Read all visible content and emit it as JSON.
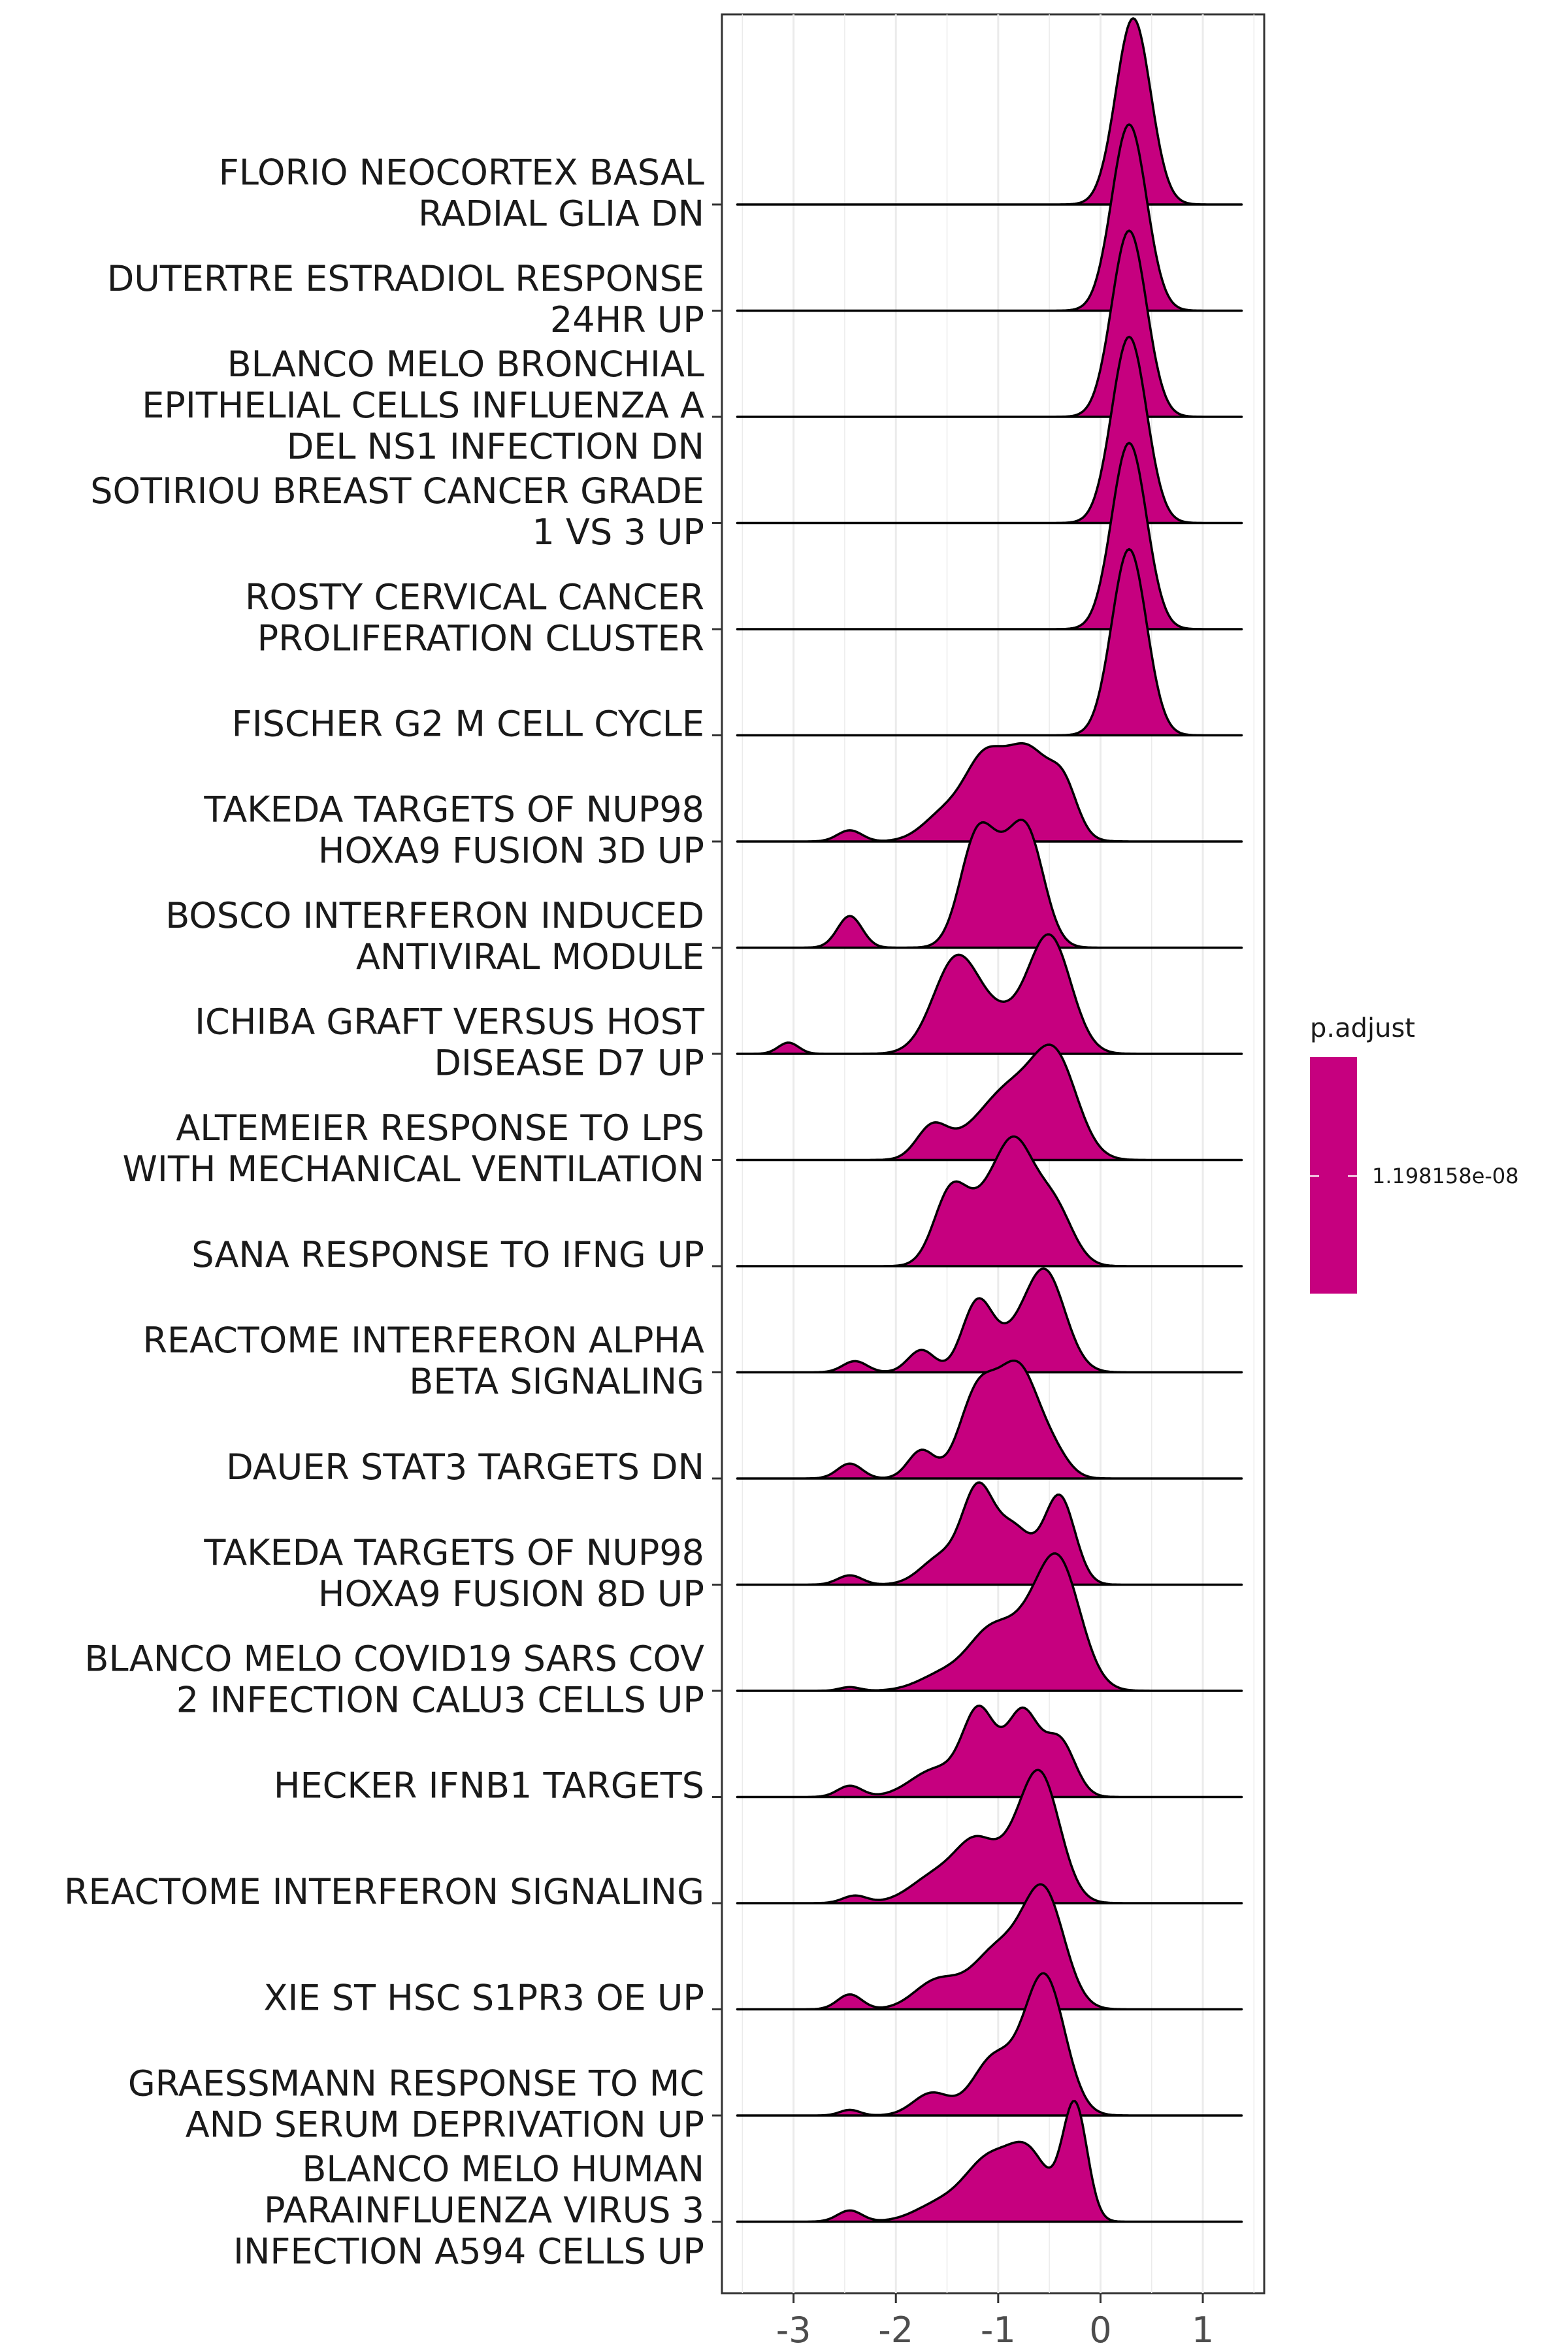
{
  "chart_data": {
    "type": "ridgeline",
    "xlim": [
      -3.7,
      1.6
    ],
    "x_ticks": [
      -3,
      -2,
      -1,
      0,
      1
    ],
    "x_tick_labels": [
      "-3",
      "-2",
      "-1",
      "0",
      "1"
    ],
    "grid": true,
    "fill_color": "#C6007F",
    "legend": {
      "position": "right",
      "title": "p.adjust",
      "labels": [
        "1.198158e-08"
      ]
    },
    "series": [
      {
        "label": "FLORIO NEOCORTEX BASAL\nRADIAL GLIA DN",
        "peaks": [
          [
            0.32,
            1.0,
            0.17
          ]
        ]
      },
      {
        "label": "DUTERTRE ESTRADIOL RESPONSE\n24HR UP",
        "peaks": [
          [
            0.28,
            1.0,
            0.17
          ]
        ]
      },
      {
        "label": "BLANCO MELO BRONCHIAL\nEPITHELIAL CELLS INFLUENZA A\nDEL NS1 INFECTION DN",
        "peaks": [
          [
            0.28,
            1.0,
            0.17
          ]
        ]
      },
      {
        "label": "SOTIRIOU BREAST CANCER GRADE\n1 VS 3 UP",
        "peaks": [
          [
            0.28,
            1.0,
            0.17
          ]
        ]
      },
      {
        "label": "ROSTY CERVICAL CANCER\nPROLIFERATION CLUSTER",
        "peaks": [
          [
            0.28,
            1.0,
            0.17
          ]
        ]
      },
      {
        "label": "FISCHER G2 M CELL CYCLE",
        "peaks": [
          [
            0.28,
            1.0,
            0.17
          ]
        ]
      },
      {
        "label": "TAKEDA TARGETS OF NUP98\nHOXA9 FUSION 3D UP",
        "peaks": [
          [
            -2.45,
            0.06,
            0.12
          ],
          [
            -1.5,
            0.16,
            0.22
          ],
          [
            -1.15,
            0.33,
            0.18
          ],
          [
            -0.72,
            0.5,
            0.25
          ],
          [
            -0.35,
            0.2,
            0.13
          ]
        ]
      },
      {
        "label": "BOSCO INTERFERON INDUCED\nANTIVIRAL MODULE",
        "peaks": [
          [
            -2.45,
            0.17,
            0.12
          ],
          [
            -1.2,
            0.6,
            0.17
          ],
          [
            -0.72,
            0.6,
            0.17
          ],
          [
            -0.95,
            0.18,
            0.15
          ]
        ]
      },
      {
        "label": "ICHIBA GRAFT VERSUS HOST\nDISEASE D7 UP",
        "peaks": [
          [
            -3.05,
            0.06,
            0.1
          ],
          [
            -1.4,
            0.52,
            0.23
          ],
          [
            -0.5,
            0.63,
            0.21
          ],
          [
            -0.95,
            0.14,
            0.2
          ]
        ]
      },
      {
        "label": "ALTEMEIER RESPONSE TO LPS\nWITH MECHANICAL VENTILATION",
        "peaks": [
          [
            -1.65,
            0.16,
            0.15
          ],
          [
            -1.1,
            0.2,
            0.3
          ],
          [
            -0.45,
            0.55,
            0.22
          ],
          [
            -0.85,
            0.2,
            0.22
          ]
        ]
      },
      {
        "label": "SANA RESPONSE TO IFNG UP",
        "peaks": [
          [
            -1.45,
            0.42,
            0.17
          ],
          [
            -0.85,
            0.65,
            0.2
          ],
          [
            -0.45,
            0.3,
            0.18
          ],
          [
            -1.15,
            0.15,
            0.15
          ]
        ]
      },
      {
        "label": "REACTOME INTERFERON ALPHA\nBETA SIGNALING",
        "peaks": [
          [
            -2.4,
            0.06,
            0.12
          ],
          [
            -1.75,
            0.12,
            0.13
          ],
          [
            -1.2,
            0.38,
            0.15
          ],
          [
            -0.55,
            0.55,
            0.2
          ],
          [
            -0.9,
            0.1,
            0.15
          ]
        ]
      },
      {
        "label": "DAUER STAT3 TARGETS DN",
        "peaks": [
          [
            -2.45,
            0.08,
            0.12
          ],
          [
            -1.75,
            0.15,
            0.13
          ],
          [
            -1.2,
            0.45,
            0.18
          ],
          [
            -0.8,
            0.58,
            0.2
          ],
          [
            -0.45,
            0.1,
            0.15
          ]
        ]
      },
      {
        "label": "TAKEDA TARGETS OF NUP98\nHOXA9 FUSION 8D UP",
        "peaks": [
          [
            -2.45,
            0.05,
            0.12
          ],
          [
            -1.55,
            0.15,
            0.2
          ],
          [
            -1.2,
            0.47,
            0.15
          ],
          [
            -0.85,
            0.3,
            0.18
          ],
          [
            -0.4,
            0.47,
            0.15
          ]
        ]
      },
      {
        "label": "BLANCO MELO COVID19 SARS COV\n2 INFECTION CALU3 CELLS UP",
        "peaks": [
          [
            -2.45,
            0.02,
            0.1
          ],
          [
            -1.5,
            0.1,
            0.25
          ],
          [
            -1.1,
            0.25,
            0.2
          ],
          [
            -0.42,
            0.7,
            0.22
          ],
          [
            -0.8,
            0.2,
            0.2
          ]
        ]
      },
      {
        "label": "HECKER IFNB1 TARGETS",
        "peaks": [
          [
            -2.45,
            0.06,
            0.12
          ],
          [
            -1.6,
            0.15,
            0.25
          ],
          [
            -1.2,
            0.37,
            0.15
          ],
          [
            -0.75,
            0.4,
            0.15
          ],
          [
            -0.4,
            0.3,
            0.15
          ],
          [
            -1.0,
            0.12,
            0.2
          ]
        ]
      },
      {
        "label": "REACTOME INTERFERON SIGNALING",
        "peaks": [
          [
            -2.4,
            0.04,
            0.12
          ],
          [
            -1.6,
            0.15,
            0.25
          ],
          [
            -1.2,
            0.3,
            0.2
          ],
          [
            -0.6,
            0.7,
            0.2
          ],
          [
            -0.9,
            0.08,
            0.15
          ]
        ]
      },
      {
        "label": "XIE ST HSC S1PR3 OE UP",
        "peaks": [
          [
            -2.45,
            0.08,
            0.12
          ],
          [
            -1.6,
            0.15,
            0.22
          ],
          [
            -1.0,
            0.32,
            0.25
          ],
          [
            -0.55,
            0.6,
            0.2
          ]
        ]
      },
      {
        "label": "GRAESSMANN RESPONSE TO MC\nAND SERUM DEPRIVATION UP",
        "peaks": [
          [
            -2.45,
            0.03,
            0.1
          ],
          [
            -1.65,
            0.12,
            0.18
          ],
          [
            -1.05,
            0.3,
            0.2
          ],
          [
            -0.55,
            0.75,
            0.2
          ]
        ]
      },
      {
        "label": "BLANCO MELO HUMAN\nPARAINFLUENZA VIRUS 3\nINFECTION A594 CELLS UP",
        "peaks": [
          [
            -2.45,
            0.06,
            0.12
          ],
          [
            -1.55,
            0.1,
            0.25
          ],
          [
            -1.1,
            0.3,
            0.22
          ],
          [
            -0.7,
            0.35,
            0.2
          ],
          [
            -0.25,
            0.62,
            0.12
          ]
        ]
      }
    ]
  }
}
